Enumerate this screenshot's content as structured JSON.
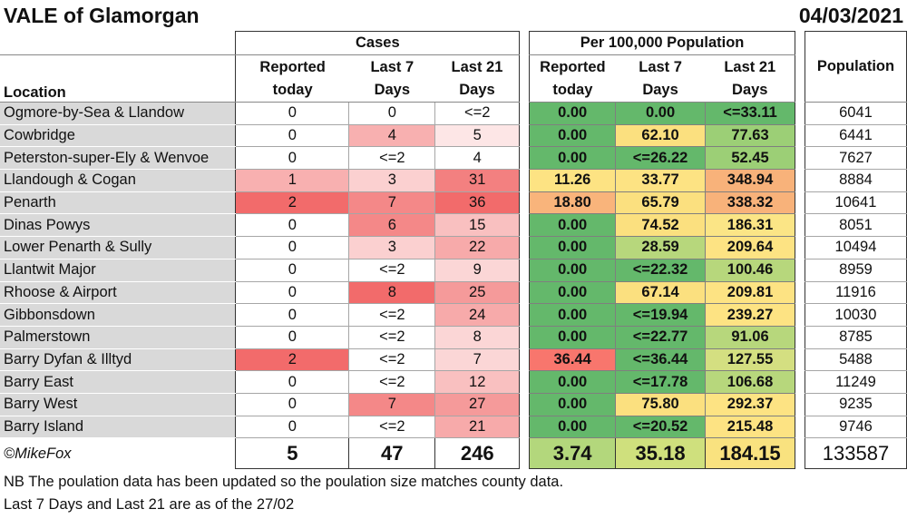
{
  "title": "VALE of Glamorgan",
  "date": "04/03/2021",
  "headers": {
    "cases_group": "Cases",
    "per_group": "Per 100,000 Population",
    "location": "Location",
    "reported_today": [
      "Reported",
      "today"
    ],
    "last7": [
      "Last 7",
      "Days"
    ],
    "last21": [
      "Last 21",
      "Days"
    ],
    "population": "Population"
  },
  "rows": [
    {
      "location": "Ogmore-by-Sea & Llandow",
      "rep": "0",
      "l7": "0",
      "l21": "<=2",
      "prep": "0.00",
      "p7": "0.00",
      "p21": "<=33.11",
      "pop": "6041"
    },
    {
      "location": "Cowbridge",
      "rep": "0",
      "l7": "4",
      "l21": "5",
      "prep": "0.00",
      "p7": "62.10",
      "p21": "77.63",
      "pop": "6441"
    },
    {
      "location": "Peterston-super-Ely & Wenvoe",
      "rep": "0",
      "l7": "<=2",
      "l21": "4",
      "prep": "0.00",
      "p7": "<=26.22",
      "p21": "52.45",
      "pop": "7627"
    },
    {
      "location": "Llandough & Cogan",
      "rep": "1",
      "l7": "3",
      "l21": "31",
      "prep": "11.26",
      "p7": "33.77",
      "p21": "348.94",
      "pop": "8884"
    },
    {
      "location": "Penarth",
      "rep": "2",
      "l7": "7",
      "l21": "36",
      "prep": "18.80",
      "p7": "65.79",
      "p21": "338.32",
      "pop": "10641"
    },
    {
      "location": "Dinas Powys",
      "rep": "0",
      "l7": "6",
      "l21": "15",
      "prep": "0.00",
      "p7": "74.52",
      "p21": "186.31",
      "pop": "8051"
    },
    {
      "location": "Lower Penarth & Sully",
      "rep": "0",
      "l7": "3",
      "l21": "22",
      "prep": "0.00",
      "p7": "28.59",
      "p21": "209.64",
      "pop": "10494"
    },
    {
      "location": "Llantwit Major",
      "rep": "0",
      "l7": "<=2",
      "l21": "9",
      "prep": "0.00",
      "p7": "<=22.32",
      "p21": "100.46",
      "pop": "8959"
    },
    {
      "location": "Rhoose & Airport",
      "rep": "0",
      "l7": "8",
      "l21": "25",
      "prep": "0.00",
      "p7": "67.14",
      "p21": "209.81",
      "pop": "11916"
    },
    {
      "location": "Gibbonsdown",
      "rep": "0",
      "l7": "<=2",
      "l21": "24",
      "prep": "0.00",
      "p7": "<=19.94",
      "p21": "239.27",
      "pop": "10030"
    },
    {
      "location": "Palmerstown",
      "rep": "0",
      "l7": "<=2",
      "l21": "8",
      "prep": "0.00",
      "p7": "<=22.77",
      "p21": "91.06",
      "pop": "8785"
    },
    {
      "location": "Barry Dyfan & Illtyd",
      "rep": "2",
      "l7": "<=2",
      "l21": "7",
      "prep": "36.44",
      "p7": "<=36.44",
      "p21": "127.55",
      "pop": "5488"
    },
    {
      "location": "Barry East",
      "rep": "0",
      "l7": "<=2",
      "l21": "12",
      "prep": "0.00",
      "p7": "<=17.78",
      "p21": "106.68",
      "pop": "11249"
    },
    {
      "location": "Barry West",
      "rep": "0",
      "l7": "7",
      "l21": "27",
      "prep": "0.00",
      "p7": "75.80",
      "p21": "292.37",
      "pop": "9235"
    },
    {
      "location": "Barry Island",
      "rep": "0",
      "l7": "<=2",
      "l21": "21",
      "prep": "0.00",
      "p7": "<=20.52",
      "p21": "215.48",
      "pop": "9746"
    }
  ],
  "totals": {
    "credit": "©MikeFox",
    "rep": "5",
    "l7": "47",
    "l21": "246",
    "prep": "3.74",
    "p7": "35.18",
    "p21": "184.15",
    "pop": "133587"
  },
  "notes": [
    "NB The poulation data has been updated so the poulation size matches county data.",
    "Last 7 Days and Last 21 are as of the 27/02"
  ]
}
